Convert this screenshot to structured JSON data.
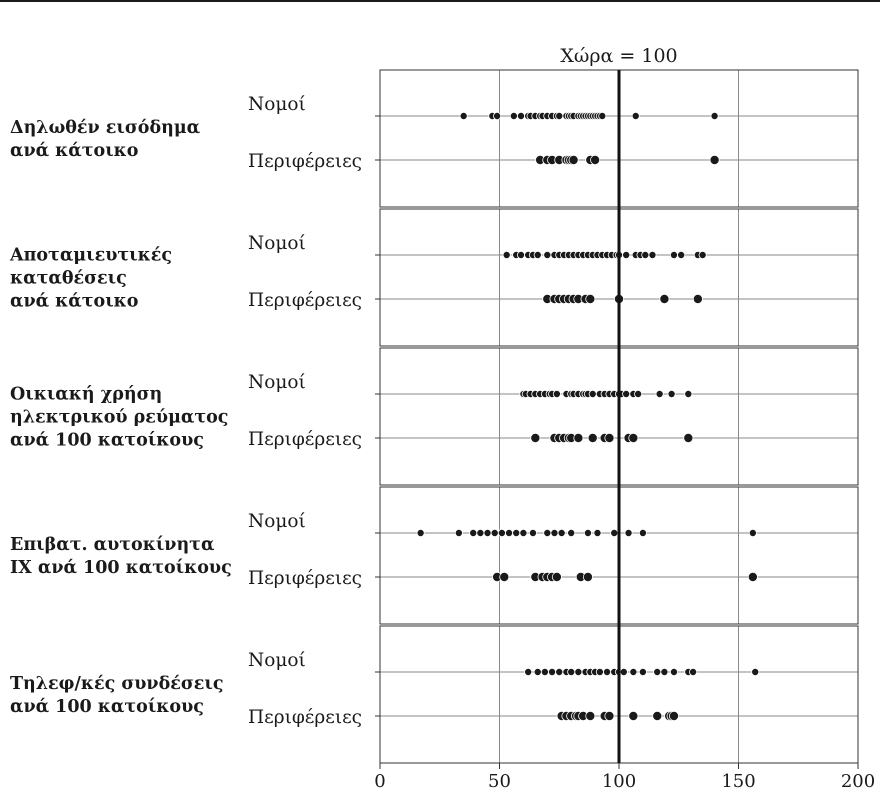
{
  "chart_data": {
    "type": "scatter",
    "title": "Χώρα = 100",
    "xlim": [
      0,
      200
    ],
    "xticks": [
      0,
      50,
      100,
      150,
      200
    ],
    "reference_value": 100,
    "grid": true,
    "row_labels": {
      "nomoi": "Νομοί",
      "perifereies": "Περιφέρειες"
    },
    "panels": [
      {
        "label": [
          "Δηλωθέν εισόδημα",
          "ανά κάτοικο"
        ],
        "nomoi": [
          35,
          47,
          49,
          56,
          59,
          62,
          63,
          65,
          67,
          68,
          70,
          72,
          74,
          75,
          78,
          79,
          80,
          81,
          83,
          84,
          85,
          86,
          87,
          88,
          89,
          90,
          91,
          92,
          93,
          107,
          140
        ],
        "perifereies": [
          67,
          70,
          72,
          75,
          78,
          79,
          80,
          81,
          88,
          90,
          140
        ]
      },
      {
        "label": [
          "Αποταμιευτικές",
          "καταθέσεις",
          "ανά κάτοικο"
        ],
        "nomoi": [
          53,
          57,
          59,
          62,
          64,
          66,
          70,
          73,
          75,
          77,
          79,
          81,
          83,
          85,
          87,
          89,
          91,
          93,
          95,
          97,
          99,
          100,
          103,
          107,
          109,
          111,
          114,
          123,
          126,
          133,
          135
        ],
        "perifereies": [
          70,
          73,
          75,
          77,
          79,
          81,
          83,
          86,
          88,
          100,
          119,
          133
        ]
      },
      {
        "label": [
          "Οικιακή χρήση",
          "ηλεκτρικού ρεύματος",
          "ανά 100 κατοίκους"
        ],
        "nomoi": [
          60,
          61,
          63,
          65,
          67,
          69,
          71,
          72,
          74,
          78,
          80,
          81,
          83,
          85,
          86,
          87,
          89,
          92,
          94,
          96,
          98,
          100,
          101,
          103,
          106,
          108,
          117,
          122,
          129
        ],
        "perifereies": [
          65,
          73,
          75,
          77,
          79,
          80,
          83,
          89,
          94,
          96,
          104,
          106,
          129
        ]
      },
      {
        "label": [
          "Επιβατ. αυτοκίνητα",
          "ΙΧ ανά 100 κατοίκους"
        ],
        "nomoi": [
          17,
          33,
          39,
          42,
          45,
          48,
          51,
          54,
          57,
          60,
          64,
          70,
          73,
          76,
          80,
          87,
          91,
          98,
          104,
          110,
          156
        ],
        "perifereies": [
          49,
          52,
          65,
          68,
          70,
          72,
          74,
          84,
          87,
          156
        ]
      },
      {
        "label": [
          "Τηλεφ/κές συνδέσεις",
          "ανά 100 κατοίκους"
        ],
        "nomoi": [
          62,
          66,
          69,
          72,
          75,
          78,
          80,
          83,
          86,
          88,
          90,
          92,
          95,
          98,
          100,
          102,
          106,
          110,
          116,
          119,
          123,
          129,
          131,
          157
        ],
        "perifereies": [
          76,
          78,
          80,
          82,
          83,
          85,
          88,
          94,
          96,
          106,
          116,
          121,
          122,
          123
        ]
      }
    ]
  }
}
